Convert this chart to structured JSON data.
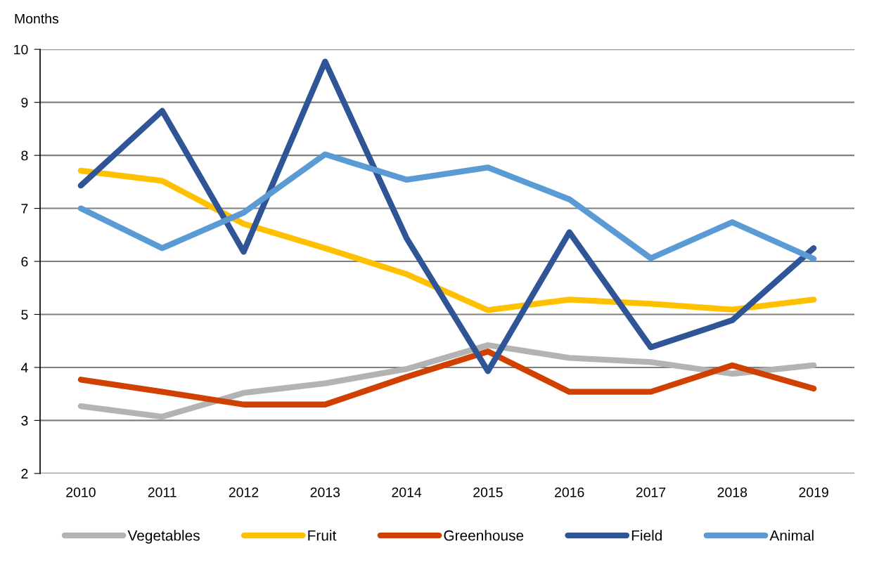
{
  "chart_data": {
    "type": "line",
    "ylabel": "Months",
    "categories": [
      "2010",
      "2011",
      "2012",
      "2013",
      "2014",
      "2015",
      "2016",
      "2017",
      "2018",
      "2019"
    ],
    "series": [
      {
        "name": "Vegetables",
        "color": "#b3b3b3",
        "values": [
          3.27,
          3.07,
          3.52,
          3.7,
          3.97,
          4.42,
          4.18,
          4.1,
          3.88,
          4.04
        ]
      },
      {
        "name": "Fruit",
        "color": "#ffc000",
        "values": [
          7.71,
          7.52,
          6.71,
          6.25,
          5.76,
          5.08,
          5.28,
          5.2,
          5.09,
          5.28
        ]
      },
      {
        "name": "Greenhouse",
        "color": "#d04000",
        "values": [
          3.77,
          3.54,
          3.3,
          3.3,
          3.82,
          4.3,
          3.54,
          3.54,
          4.04,
          3.6
        ]
      },
      {
        "name": "Field",
        "color": "#2f5597",
        "values": [
          7.43,
          8.84,
          6.18,
          9.77,
          6.44,
          3.93,
          6.55,
          4.38,
          4.89,
          6.25
        ]
      },
      {
        "name": "Animal",
        "color": "#5b9bd5",
        "values": [
          7.0,
          6.25,
          6.92,
          8.02,
          7.54,
          7.77,
          7.17,
          6.06,
          6.74,
          6.05
        ]
      }
    ],
    "ylim": [
      2,
      10
    ],
    "yticks": [
      2,
      3,
      4,
      5,
      6,
      7,
      8,
      9,
      10
    ],
    "grid": "y",
    "legend": "bottom",
    "line_style": "solid",
    "marker": "none"
  }
}
